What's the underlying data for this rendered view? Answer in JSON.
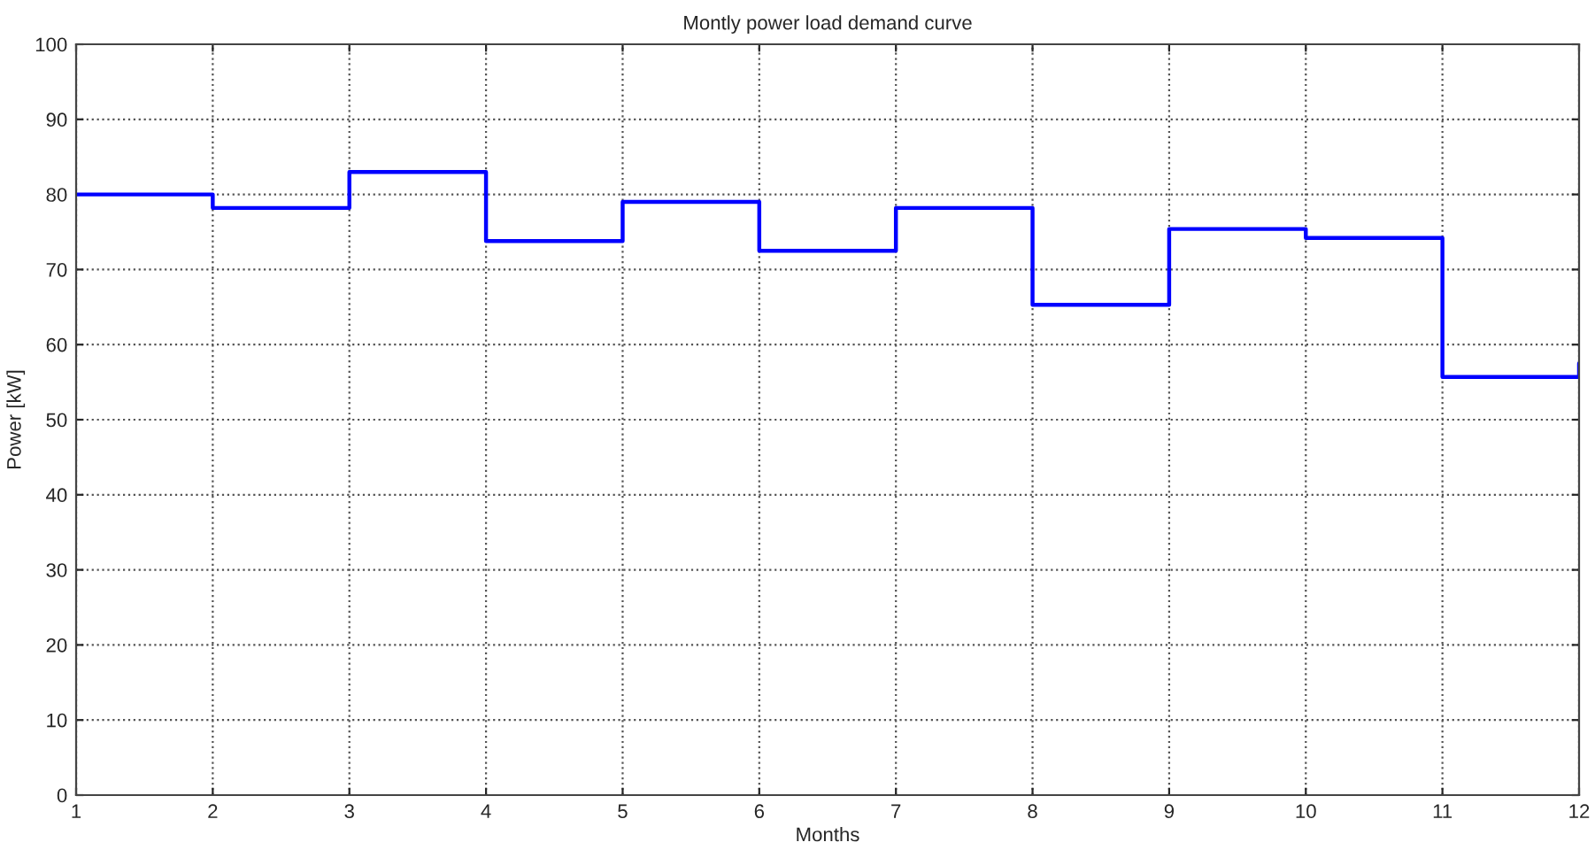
{
  "chart_data": {
    "type": "step",
    "title": "Montly power load demand curve",
    "xlabel": "Months",
    "ylabel": "Power [kW]",
    "x": [
      1,
      2,
      3,
      4,
      5,
      6,
      7,
      8,
      9,
      10,
      11,
      12
    ],
    "series": [
      {
        "color": "#0000ff",
        "values": [
          80,
          78.2,
          83,
          73.8,
          79,
          72.5,
          78.2,
          65.3,
          75.4,
          74.2,
          55.7,
          57.5
        ]
      }
    ],
    "xlim": [
      1,
      12
    ],
    "xticks": [
      1,
      2,
      3,
      4,
      5,
      6,
      7,
      8,
      9,
      10,
      11,
      12
    ],
    "ylim": [
      0,
      100
    ],
    "yticks": [
      0,
      10,
      20,
      30,
      40,
      50,
      60,
      70,
      80,
      90,
      100
    ],
    "grid": true,
    "line_style": "solid"
  }
}
